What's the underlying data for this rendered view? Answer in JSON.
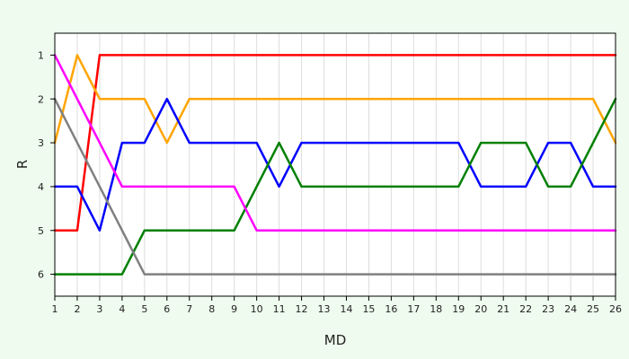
{
  "chart_data": {
    "type": "line",
    "title": "",
    "xlabel": "MD",
    "ylabel": "R",
    "x": [
      1,
      2,
      3,
      4,
      5,
      6,
      7,
      8,
      9,
      10,
      11,
      12,
      13,
      14,
      15,
      16,
      17,
      18,
      19,
      20,
      21,
      22,
      23,
      24,
      25,
      26
    ],
    "xlim": [
      1,
      26
    ],
    "ylim": [
      6.5,
      0.5
    ],
    "y_inverted": true,
    "yticks": [
      1,
      2,
      3,
      4,
      5,
      6
    ],
    "grid": "vertical",
    "legend": "none",
    "series": [
      {
        "color": "#ff0000",
        "values": [
          5,
          5,
          1,
          1,
          1,
          1,
          1,
          1,
          1,
          1,
          1,
          1,
          1,
          1,
          1,
          1,
          1,
          1,
          1,
          1,
          1,
          1,
          1,
          1,
          1,
          1
        ]
      },
      {
        "color": "#ffa500",
        "values": [
          3,
          1,
          2,
          2,
          2,
          3,
          2,
          2,
          2,
          2,
          2,
          2,
          2,
          2,
          2,
          2,
          2,
          2,
          2,
          2,
          2,
          2,
          2,
          2,
          2,
          3
        ]
      },
      {
        "color": "#0000ff",
        "values": [
          4,
          4,
          5,
          3,
          3,
          2,
          3,
          3,
          3,
          3,
          4,
          3,
          3,
          3,
          3,
          3,
          3,
          3,
          3,
          4,
          4,
          4,
          3,
          3,
          4,
          4
        ]
      },
      {
        "color": "#008000",
        "values": [
          6,
          6,
          6,
          6,
          5,
          5,
          5,
          5,
          5,
          4,
          3,
          4,
          4,
          4,
          4,
          4,
          4,
          4,
          4,
          3,
          3,
          3,
          4,
          4,
          3,
          2
        ]
      },
      {
        "color": "#ff00ff",
        "values": [
          1,
          2,
          3,
          4,
          4,
          4,
          4,
          4,
          4,
          5,
          5,
          5,
          5,
          5,
          5,
          5,
          5,
          5,
          5,
          5,
          5,
          5,
          5,
          5,
          5,
          5
        ]
      },
      {
        "color": "#808080",
        "values": [
          2,
          3,
          4,
          5,
          6,
          6,
          6,
          6,
          6,
          6,
          6,
          6,
          6,
          6,
          6,
          6,
          6,
          6,
          6,
          6,
          6,
          6,
          6,
          6,
          6,
          6
        ]
      }
    ]
  }
}
